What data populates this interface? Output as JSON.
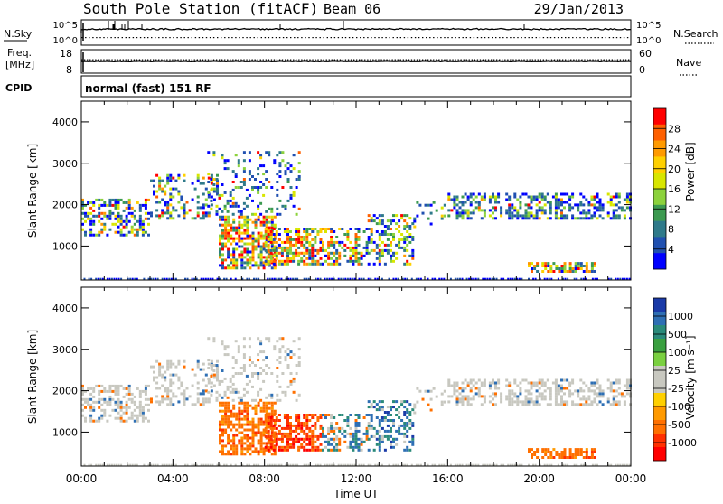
{
  "header": {
    "station": "South Pole Station (fitACF)",
    "beam": "Beam 06",
    "date": "29/Jan/2013"
  },
  "noise_panel": {
    "left_label": "N.Sky",
    "right_label": "N.Search",
    "left_ticks": [
      "10^5",
      "10^0"
    ],
    "right_ticks": [
      "10^5",
      "10^0"
    ]
  },
  "freq_panel": {
    "left_label_line1": "Freq.",
    "left_label_line2": "[MHz]",
    "left_ticks": [
      "18",
      "8"
    ],
    "right_label": "Nave",
    "right_ticks": [
      "60",
      "0"
    ]
  },
  "cpid_panel": {
    "label": "CPID",
    "mode_text": "normal (fast) 151 RF"
  },
  "chart_data": [
    {
      "type": "heatmap",
      "name": "power",
      "ylabel": "Slant Range [km]",
      "yticks": [
        "4000",
        "3000",
        "2000",
        "1000"
      ],
      "ylim": [
        180,
        4500
      ],
      "xlim": [
        0,
        24
      ],
      "colorbar_label": "Power [dB]",
      "colorbar_ticks": [
        "28",
        "24",
        "20",
        "16",
        "12",
        "8",
        "4"
      ],
      "colorbar_colors": [
        "#ff0000",
        "#ff6000",
        "#ff9a00",
        "#ffd000",
        "#d8e600",
        "#8cd23c",
        "#3c9a50",
        "#2f7a8a",
        "#2050b0",
        "#0000ff"
      ]
    },
    {
      "type": "heatmap",
      "name": "velocity",
      "ylabel": "Slant Range [km]",
      "yticks": [
        "4000",
        "3000",
        "2000",
        "1000"
      ],
      "ylim": [
        180,
        4500
      ],
      "xlim": [
        0,
        24
      ],
      "xticks": [
        "00:00",
        "04:00",
        "08:00",
        "12:00",
        "16:00",
        "20:00",
        "00:00"
      ],
      "xlabel": "Time UT",
      "colorbar_label": "Velocity [m s⁻¹]",
      "colorbar_ticks": [
        "1000",
        "500",
        "100",
        "25",
        "-25",
        "-100",
        "-500",
        "-1000"
      ],
      "colorbar_colors": [
        "#1a3aa8",
        "#2e6fb4",
        "#2a8a7a",
        "#3aa040",
        "#7ad040",
        "#c8c8c0",
        "#c8c8c0",
        "#ffd000",
        "#ff9a00",
        "#ff7000",
        "#ff3000",
        "#ff0000"
      ]
    }
  ]
}
